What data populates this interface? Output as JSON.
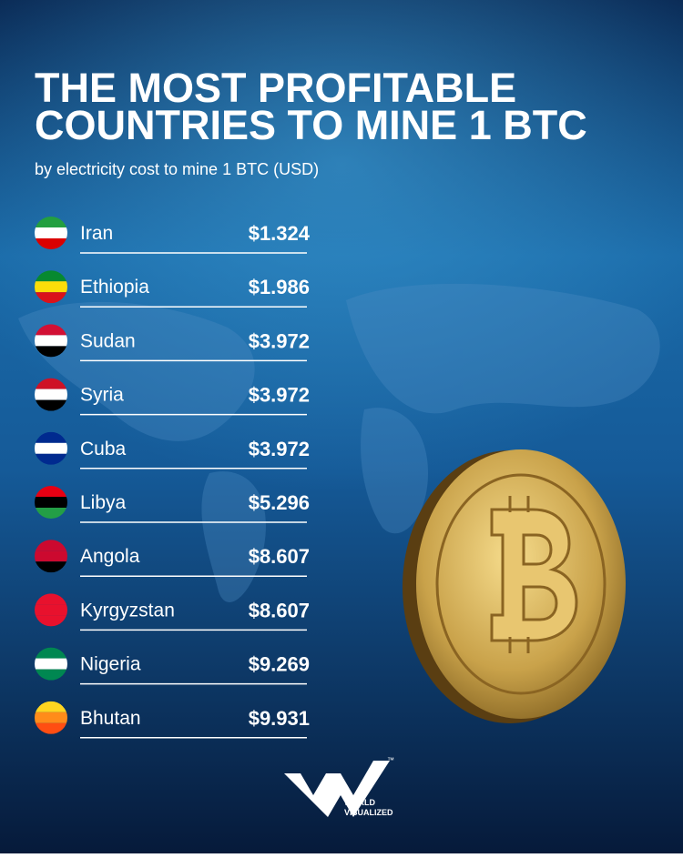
{
  "header": {
    "title_lines": [
      "THE MOST PROFITABLE",
      "COUNTRIES TO MINE 1 BTC"
    ],
    "subtitle": "by electricity cost to mine 1 BTC (USD)"
  },
  "table": {
    "rows": [
      [
        "Iran",
        "$1.324"
      ],
      [
        "Ethiopia",
        "$1.986"
      ],
      [
        "Sudan",
        "$3.972"
      ],
      [
        "Syria",
        "$3.972"
      ],
      [
        "Cuba",
        "$3.972"
      ],
      [
        "Libya",
        "$5.296"
      ],
      [
        "Angola",
        "$8.607"
      ],
      [
        "Kyrgyzstan",
        "$8.607"
      ],
      [
        "Nigeria",
        "$9.269"
      ],
      [
        "Bhutan",
        "$9.931"
      ]
    ]
  },
  "logo": {
    "lines": [
      "WORLD",
      "VISUALIZED"
    ],
    "mark": "™"
  }
}
